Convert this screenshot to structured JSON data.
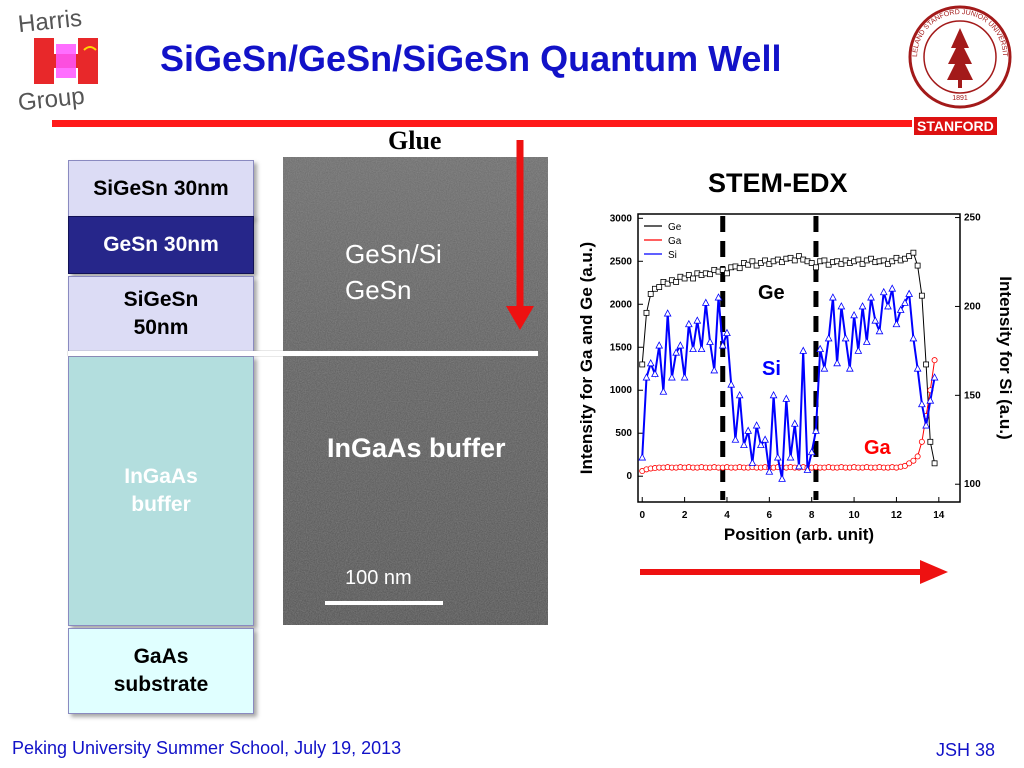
{
  "slide": {
    "title": "SiGeSn/GeSn/SiGeSn Quantum Well",
    "footer_left": "Peking University Summer School, July 19, 2013",
    "footer_right": "JSH 38",
    "stanford_label": "STANFORD",
    "logo_left_text": [
      "Harris",
      "Group"
    ],
    "seal_text": "LELAND STANFORD JUNIOR UNIVERSITY",
    "seal_year": "1891"
  },
  "stack": {
    "layers": [
      {
        "label": "SiGeSn 30nm",
        "color": "#dcdcf5",
        "text_color": "#000000"
      },
      {
        "label": "GeSn 30nm",
        "color": "#26268a",
        "text_color": "#ffffff"
      },
      {
        "label": "SiGeSn 50nm",
        "color": "#dcdcf5",
        "text_color": "#000000"
      },
      {
        "label": "InGaAs buffer",
        "color": "#b3dede",
        "text_color": "#ffffff"
      },
      {
        "label": "GaAs substrate",
        "color": "#e0ffff",
        "text_color": "#000000"
      }
    ]
  },
  "tem": {
    "glue_label": "Glue",
    "label_top_1": "GeSn/Si",
    "label_top_2": "GeSn",
    "label_buffer": "InGaAs buffer",
    "scale_bar": "100 nm"
  },
  "chart_data": {
    "type": "line",
    "title": "STEM-EDX",
    "xlabel": "Position (arb. unit)",
    "ylabel": "Intensity for Ga and Ge (a.u.)",
    "ylabel_right": "Intensity  for  Si (a.u.)",
    "xlim": [
      -0.2,
      15
    ],
    "ylim": [
      -300,
      3050
    ],
    "ylim_right": [
      90,
      252
    ],
    "xticks": [
      0,
      2,
      4,
      6,
      8,
      10,
      12,
      14
    ],
    "yticks": [
      0,
      500,
      1000,
      1500,
      2000,
      2500,
      3000
    ],
    "yticks_right": [
      100,
      150,
      200,
      250
    ],
    "legend": [
      "Ge",
      "Ga",
      "Si"
    ],
    "legend_position": "top-left",
    "annotations": {
      "ge": "Ge",
      "si": "Si",
      "ga": "Ga"
    },
    "dashed_lines_x": [
      3.8,
      8.2
    ],
    "series": [
      {
        "name": "Ge",
        "color": "#000000",
        "marker": "square",
        "x": [
          0,
          0.2,
          0.4,
          0.6,
          0.8,
          1.0,
          1.2,
          1.4,
          1.6,
          1.8,
          2.0,
          2.2,
          2.4,
          2.6,
          2.8,
          3.0,
          3.2,
          3.4,
          3.6,
          3.8,
          4.0,
          4.2,
          4.4,
          4.6,
          4.8,
          5.0,
          5.2,
          5.4,
          5.6,
          5.8,
          6.0,
          6.2,
          6.4,
          6.6,
          6.8,
          7.0,
          7.2,
          7.4,
          7.6,
          7.8,
          8.0,
          8.2,
          8.4,
          8.6,
          8.8,
          9.0,
          9.2,
          9.4,
          9.6,
          9.8,
          10.0,
          10.2,
          10.4,
          10.6,
          10.8,
          11.0,
          11.2,
          11.4,
          11.6,
          11.8,
          12.0,
          12.2,
          12.4,
          12.6,
          12.8,
          13.0,
          13.2,
          13.4,
          13.6,
          13.8
        ],
        "y": [
          1300,
          1900,
          2120,
          2180,
          2200,
          2260,
          2240,
          2280,
          2260,
          2320,
          2300,
          2340,
          2300,
          2360,
          2340,
          2360,
          2350,
          2400,
          2380,
          2400,
          2360,
          2430,
          2440,
          2420,
          2480,
          2460,
          2500,
          2450,
          2480,
          2510,
          2470,
          2500,
          2520,
          2490,
          2530,
          2540,
          2510,
          2560,
          2520,
          2500,
          2480,
          2430,
          2500,
          2510,
          2460,
          2490,
          2500,
          2470,
          2510,
          2480,
          2500,
          2520,
          2470,
          2510,
          2530,
          2490,
          2500,
          2510,
          2470,
          2500,
          2540,
          2510,
          2530,
          2560,
          2600,
          2450,
          2100,
          1300,
          400,
          150
        ]
      },
      {
        "name": "Ga",
        "color": "#ff0000",
        "marker": "circle",
        "x": [
          0,
          0.2,
          0.4,
          0.6,
          0.8,
          1.0,
          1.2,
          1.4,
          1.6,
          1.8,
          2.0,
          2.2,
          2.4,
          2.6,
          2.8,
          3.0,
          3.2,
          3.4,
          3.6,
          3.8,
          4.0,
          4.2,
          4.4,
          4.6,
          4.8,
          5.0,
          5.2,
          5.4,
          5.6,
          5.8,
          6.0,
          6.2,
          6.4,
          6.6,
          6.8,
          7.0,
          7.2,
          7.4,
          7.6,
          7.8,
          8.0,
          8.2,
          8.4,
          8.6,
          8.8,
          9.0,
          9.2,
          9.4,
          9.6,
          9.8,
          10.0,
          10.2,
          10.4,
          10.6,
          10.8,
          11.0,
          11.2,
          11.4,
          11.6,
          11.8,
          12.0,
          12.2,
          12.4,
          12.6,
          12.8,
          13.0,
          13.2,
          13.4,
          13.6,
          13.8
        ],
        "y": [
          60,
          80,
          90,
          95,
          100,
          100,
          105,
          100,
          100,
          105,
          100,
          105,
          100,
          100,
          105,
          100,
          100,
          105,
          100,
          100,
          105,
          100,
          100,
          105,
          100,
          100,
          105,
          100,
          100,
          105,
          100,
          100,
          105,
          100,
          100,
          105,
          100,
          100,
          105,
          100,
          100,
          105,
          100,
          100,
          105,
          100,
          100,
          105,
          100,
          100,
          105,
          100,
          100,
          105,
          100,
          100,
          105,
          100,
          100,
          105,
          100,
          110,
          120,
          150,
          180,
          230,
          400,
          700,
          1000,
          1350
        ]
      },
      {
        "name": "Si",
        "color": "#0000ff",
        "marker": "triangle",
        "axis": "right",
        "x": [
          0,
          0.2,
          0.4,
          0.6,
          0.8,
          1.0,
          1.2,
          1.4,
          1.6,
          1.8,
          2.0,
          2.2,
          2.4,
          2.6,
          2.8,
          3.0,
          3.2,
          3.4,
          3.6,
          3.8,
          4.0,
          4.2,
          4.4,
          4.6,
          4.8,
          5.0,
          5.2,
          5.4,
          5.6,
          5.8,
          6.0,
          6.2,
          6.4,
          6.6,
          6.8,
          7.0,
          7.2,
          7.4,
          7.6,
          7.8,
          8.0,
          8.2,
          8.4,
          8.6,
          8.8,
          9.0,
          9.2,
          9.4,
          9.6,
          9.8,
          10.0,
          10.2,
          10.4,
          10.6,
          10.8,
          11.0,
          11.2,
          11.4,
          11.6,
          11.8,
          12.0,
          12.2,
          12.4,
          12.6,
          12.8,
          13.0,
          13.2,
          13.4,
          13.6,
          13.8
        ],
        "y": [
          115,
          160,
          168,
          162,
          178,
          152,
          196,
          160,
          174,
          178,
          160,
          190,
          176,
          192,
          176,
          202,
          180,
          164,
          205,
          178,
          185,
          156,
          125,
          150,
          122,
          130,
          112,
          133,
          122,
          125,
          107,
          150,
          115,
          103,
          148,
          115,
          134,
          110,
          175,
          108,
          118,
          130,
          176,
          165,
          182,
          205,
          168,
          200,
          182,
          165,
          195,
          175,
          200,
          180,
          205,
          192,
          186,
          208,
          200,
          210,
          190,
          198,
          202,
          207,
          182,
          165,
          145,
          133,
          147,
          160
        ]
      }
    ]
  }
}
